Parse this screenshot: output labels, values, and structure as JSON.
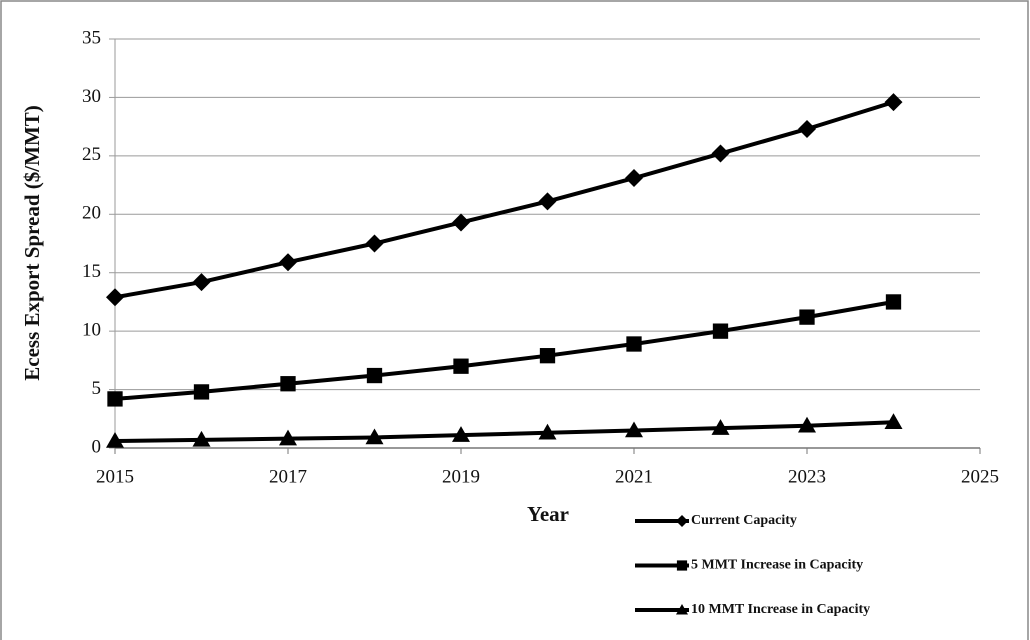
{
  "chart_data": {
    "type": "line",
    "x_label": "Year",
    "y_label": "Ecess Export Spread ($/MMT)",
    "x": [
      2015,
      2016,
      2017,
      2018,
      2019,
      2020,
      2021,
      2022,
      2023,
      2024
    ],
    "series": [
      {
        "name": "Current Capacity",
        "color": "#000000",
        "marker": "diamond",
        "values": [
          12.9,
          14.2,
          15.9,
          17.5,
          19.3,
          21.1,
          23.1,
          25.2,
          27.3,
          29.6
        ]
      },
      {
        "name": "5 MMT Increase in Capacity",
        "color": "#000000",
        "marker": "square",
        "values": [
          4.2,
          4.8,
          5.5,
          6.2,
          7.0,
          7.9,
          8.9,
          10.0,
          11.2,
          12.5
        ]
      },
      {
        "name": "10 MMT Increase in Capacity",
        "color": "#000000",
        "marker": "triangle",
        "values": [
          0.6,
          0.7,
          0.8,
          0.9,
          1.1,
          1.3,
          1.5,
          1.7,
          1.9,
          2.2
        ]
      }
    ],
    "xlim": [
      2015,
      2025
    ],
    "xticks": [
      2015,
      2017,
      2019,
      2021,
      2023,
      2025
    ],
    "ylim": [
      0,
      35
    ],
    "yticks": [
      0,
      5,
      10,
      15,
      20,
      25,
      30,
      35
    ],
    "grid": true,
    "legend": "bottom-right"
  }
}
